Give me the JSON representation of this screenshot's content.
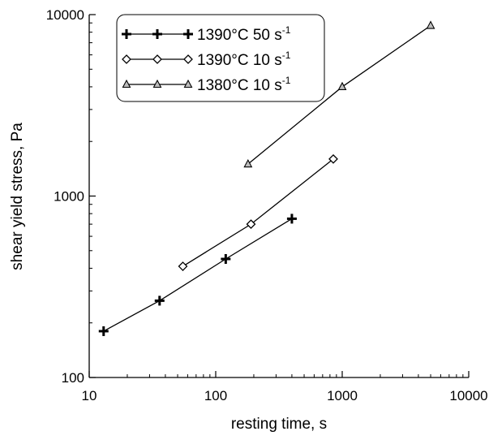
{
  "chart_data": {
    "type": "line",
    "title": "",
    "xlabel": "resting time, s",
    "ylabel": "shear yield stress, Pa",
    "x_scale": "log",
    "y_scale": "log",
    "xlim": [
      10,
      10000
    ],
    "ylim": [
      100,
      10000
    ],
    "x_ticks": [
      "10",
      "100",
      "1000",
      "10000"
    ],
    "y_ticks": [
      "100",
      "1000",
      "10000"
    ],
    "grid": false,
    "legend_position": "top-left",
    "series": [
      {
        "name": "1390°C 50 s",
        "name_superscript": "-1",
        "marker": "plus",
        "x": [
          13,
          36,
          120,
          400
        ],
        "y": [
          180,
          265,
          450,
          750
        ]
      },
      {
        "name": "1390°C 10 s",
        "name_superscript": "-1",
        "marker": "diamond",
        "x": [
          55,
          190,
          850
        ],
        "y": [
          410,
          700,
          1600
        ]
      },
      {
        "name": "1380°C 10 s",
        "name_superscript": "-1",
        "marker": "triangle",
        "x": [
          180,
          1000,
          5000
        ],
        "y": [
          1500,
          4000,
          8700
        ]
      }
    ]
  }
}
